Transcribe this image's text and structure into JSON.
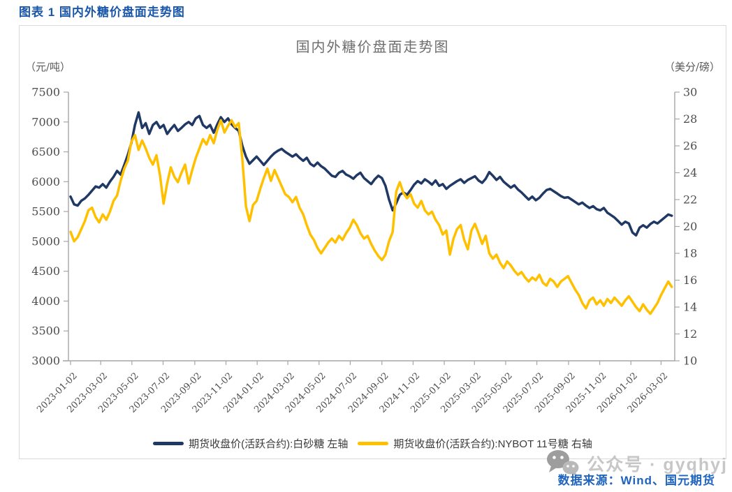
{
  "page": {
    "heading": "图表 1 国内外糖价盘面走势图",
    "source_note": "数据来源：Wind、国元期货",
    "watermark": {
      "icon": "wechat-bubbles-icon",
      "text": "公众号 · gyqhyj"
    }
  },
  "colors": {
    "heading_blue": "#1a57aa",
    "source_blue": "#1e63bd",
    "title_gray": "#6e6e6e",
    "axis_text_gray": "#4d4d4d",
    "axis_line_gray": "#a6a6a6",
    "panel_border_gray": "#d9d9d9",
    "series_domestic_navy": "#1f3864",
    "series_international_gold": "#ffc000",
    "watermark_gray": "#c7c7c7"
  },
  "chart_data": {
    "type": "line",
    "title": "国内外糖价盘面走势图",
    "grid": false,
    "legend_position": "bottom",
    "left_axis": {
      "unit": "（元/吨）",
      "min": 3000,
      "max": 7500,
      "tick_step": 500,
      "ticks": [
        7500,
        7000,
        6500,
        6000,
        5500,
        5000,
        4500,
        4000,
        3500,
        3000
      ]
    },
    "right_axis": {
      "unit": "（美分/磅）",
      "min": 10,
      "max": 30,
      "tick_step": 2,
      "ticks": [
        30,
        28,
        26,
        24,
        22,
        20,
        18,
        16,
        14,
        12,
        10
      ]
    },
    "x_axis": {
      "start": "2023-01-02",
      "end": "2026-03-27",
      "tick_labels": [
        "2023-01-02",
        "2023-03-02",
        "2023-05-02",
        "2023-07-02",
        "2023-09-02",
        "2023-11-02",
        "2024-01-02",
        "2024-03-02",
        "2024-05-02",
        "2024-07-02",
        "2024-09-02",
        "2024-11-02",
        "2025-01-02",
        "2025-03-02",
        "2025-05-02",
        "2025-07-02",
        "2025-09-02",
        "2025-11-02",
        "2026-01-02",
        "2026-03-02"
      ]
    },
    "sampling": {
      "start_date": "2023-01-02",
      "interval_days": 7
    },
    "series": [
      {
        "name": "期货收盘价(活跃合约):白砂糖 左轴",
        "axis": "left",
        "color": "#1f3864",
        "values": [
          5750,
          5620,
          5600,
          5680,
          5720,
          5780,
          5850,
          5920,
          5900,
          5960,
          5900,
          6000,
          6080,
          6180,
          6120,
          6280,
          6450,
          6650,
          6950,
          7160,
          6900,
          6980,
          6800,
          6950,
          7000,
          6900,
          6950,
          6800,
          6880,
          6950,
          6850,
          6900,
          6960,
          7000,
          6950,
          7060,
          7100,
          6950,
          6900,
          6950,
          6820,
          6960,
          7080,
          7000,
          7060,
          6960,
          6900,
          6850,
          6600,
          6420,
          6300,
          6360,
          6420,
          6350,
          6280,
          6350,
          6420,
          6480,
          6520,
          6550,
          6500,
          6460,
          6420,
          6460,
          6400,
          6350,
          6400,
          6300,
          6260,
          6320,
          6260,
          6220,
          6160,
          6100,
          6080,
          6150,
          6180,
          6120,
          6090,
          6050,
          6110,
          6150,
          6060,
          6010,
          5960,
          6040,
          6100,
          6060,
          5930,
          5700,
          5520,
          5640,
          5780,
          5820,
          5780,
          5860,
          5950,
          6010,
          5970,
          6040,
          6000,
          5950,
          6020,
          5930,
          5960,
          5880,
          5930,
          5970,
          6010,
          6040,
          5980,
          6030,
          6060,
          6090,
          6020,
          5980,
          6050,
          6160,
          6100,
          6030,
          6080,
          6000,
          5950,
          5900,
          5940,
          5870,
          5820,
          5760,
          5700,
          5750,
          5690,
          5730,
          5800,
          5860,
          5880,
          5840,
          5800,
          5760,
          5730,
          5740,
          5700,
          5660,
          5620,
          5650,
          5600,
          5560,
          5590,
          5540,
          5520,
          5560,
          5480,
          5440,
          5400,
          5340,
          5280,
          5330,
          5300,
          5150,
          5100,
          5230,
          5270,
          5230,
          5290,
          5330,
          5300,
          5350,
          5400,
          5450,
          5430
        ]
      },
      {
        "name": "期货收盘价(活跃合约):NYBOT 11号糖 右轴",
        "axis": "right",
        "color": "#ffc000",
        "values": [
          19.6,
          18.9,
          19.2,
          19.8,
          20.4,
          21.2,
          21.4,
          20.7,
          20.3,
          20.9,
          20.5,
          21.1,
          21.9,
          22.3,
          23.4,
          24.3,
          24.9,
          26.3,
          26.8,
          25.7,
          26.4,
          25.8,
          25.1,
          24.6,
          25.3,
          23.8,
          21.7,
          23.2,
          24.4,
          23.7,
          23.3,
          24.0,
          24.6,
          23.2,
          24.2,
          25.1,
          25.8,
          26.5,
          26.1,
          26.8,
          26.2,
          27.2,
          27.9,
          27.0,
          27.5,
          27.9,
          27.4,
          27.7,
          25.0,
          21.5,
          20.4,
          21.6,
          21.9,
          22.8,
          23.6,
          24.3,
          23.4,
          24.2,
          23.6,
          23.0,
          22.4,
          22.2,
          21.8,
          22.2,
          21.4,
          20.9,
          20.1,
          19.4,
          19.0,
          18.4,
          18.0,
          18.4,
          18.8,
          19.1,
          18.8,
          19.3,
          19.0,
          19.5,
          19.9,
          20.5,
          20.1,
          19.5,
          19.1,
          19.3,
          18.7,
          18.2,
          17.8,
          17.5,
          17.9,
          18.9,
          19.6,
          22.6,
          23.3,
          22.5,
          22.1,
          22.4,
          21.7,
          21.4,
          21.9,
          21.2,
          20.9,
          21.1,
          20.5,
          20.1,
          19.4,
          19.7,
          17.9,
          19.1,
          19.8,
          20.1,
          19.0,
          18.3,
          19.7,
          20.2,
          19.5,
          18.7,
          19.3,
          18.0,
          17.6,
          17.9,
          17.3,
          16.9,
          17.4,
          17.1,
          16.7,
          16.4,
          16.6,
          16.2,
          15.9,
          16.2,
          16.0,
          16.4,
          15.8,
          15.6,
          16.1,
          15.9,
          15.5,
          15.9,
          16.1,
          16.3,
          15.8,
          15.3,
          14.9,
          14.3,
          13.9,
          14.5,
          14.7,
          14.2,
          14.5,
          14.1,
          14.6,
          14.3,
          14.7,
          14.4,
          14.1,
          14.5,
          14.8,
          14.4,
          14.0,
          13.7,
          14.2,
          13.8,
          13.5,
          13.9,
          14.3,
          14.9,
          15.4,
          15.9,
          15.5
        ]
      }
    ]
  }
}
